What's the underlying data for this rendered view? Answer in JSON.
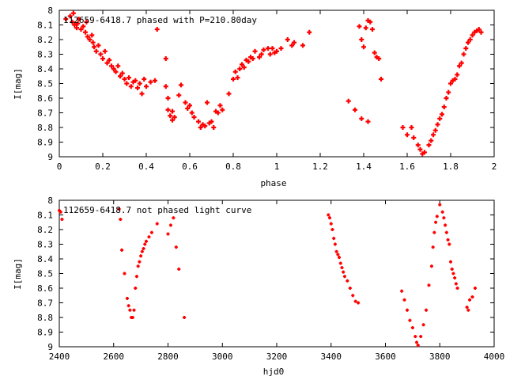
{
  "chart_data": [
    {
      "type": "scatter",
      "title": "112659-6418.7 phased with P=210.80day",
      "xlabel": "phase",
      "ylabel": "I[mag]",
      "xlim": [
        0,
        2
      ],
      "ylim": [
        9,
        8
      ],
      "y_inverted": true,
      "xticks": [
        "0",
        "0.2",
        "0.4",
        "0.6",
        "0.8",
        "1",
        "1.2",
        "1.4",
        "1.6",
        "1.8",
        "2"
      ],
      "yticks": [
        "8",
        "8.1",
        "8.2",
        "8.3",
        "8.4",
        "8.5",
        "8.6",
        "8.7",
        "8.8",
        "8.9",
        "9"
      ],
      "grid": false,
      "series": [
        {
          "color": "#ff0000",
          "marker": "cross",
          "points": [
            [
              0.03,
              8.06
            ],
            [
              0.05,
              8.04
            ],
            [
              0.06,
              8.08
            ],
            [
              0.065,
              8.02
            ],
            [
              0.07,
              8.1
            ],
            [
              0.08,
              8.12
            ],
            [
              0.085,
              8.09
            ],
            [
              0.09,
              8.06
            ],
            [
              0.1,
              8.13
            ],
            [
              0.11,
              8.11
            ],
            [
              0.12,
              8.15
            ],
            [
              0.125,
              8.08
            ],
            [
              0.13,
              8.18
            ],
            [
              0.14,
              8.2
            ],
            [
              0.15,
              8.17
            ],
            [
              0.155,
              8.22
            ],
            [
              0.16,
              8.25
            ],
            [
              0.17,
              8.28
            ],
            [
              0.18,
              8.24
            ],
            [
              0.19,
              8.3
            ],
            [
              0.2,
              8.33
            ],
            [
              0.21,
              8.28
            ],
            [
              0.22,
              8.36
            ],
            [
              0.23,
              8.34
            ],
            [
              0.24,
              8.38
            ],
            [
              0.25,
              8.4
            ],
            [
              0.26,
              8.42
            ],
            [
              0.27,
              8.38
            ],
            [
              0.28,
              8.45
            ],
            [
              0.29,
              8.43
            ],
            [
              0.3,
              8.47
            ],
            [
              0.31,
              8.5
            ],
            [
              0.32,
              8.46
            ],
            [
              0.33,
              8.52
            ],
            [
              0.34,
              8.49
            ],
            [
              0.35,
              8.48
            ],
            [
              0.36,
              8.53
            ],
            [
              0.37,
              8.5
            ],
            [
              0.38,
              8.57
            ],
            [
              0.39,
              8.47
            ],
            [
              0.4,
              8.52
            ],
            [
              0.42,
              8.49
            ],
            [
              0.44,
              8.48
            ],
            [
              0.45,
              8.13
            ],
            [
              0.49,
              8.33
            ],
            [
              0.49,
              8.52
            ],
            [
              0.5,
              8.6
            ],
            [
              0.5,
              8.68
            ],
            [
              0.51,
              8.72
            ],
            [
              0.52,
              8.75
            ],
            [
              0.52,
              8.69
            ],
            [
              0.53,
              8.73
            ],
            [
              0.55,
              8.58
            ],
            [
              0.56,
              8.51
            ],
            [
              0.58,
              8.63
            ],
            [
              0.59,
              8.67
            ],
            [
              0.6,
              8.65
            ],
            [
              0.61,
              8.7
            ],
            [
              0.62,
              8.73
            ],
            [
              0.64,
              8.76
            ],
            [
              0.65,
              8.8
            ],
            [
              0.66,
              8.78
            ],
            [
              0.67,
              8.79
            ],
            [
              0.68,
              8.63
            ],
            [
              0.69,
              8.77
            ],
            [
              0.7,
              8.76
            ],
            [
              0.71,
              8.8
            ],
            [
              0.72,
              8.69
            ],
            [
              0.73,
              8.7
            ],
            [
              0.74,
              8.65
            ],
            [
              0.75,
              8.68
            ],
            [
              0.78,
              8.57
            ],
            [
              0.8,
              8.47
            ],
            [
              0.81,
              8.42
            ],
            [
              0.82,
              8.46
            ],
            [
              0.83,
              8.4
            ],
            [
              0.84,
              8.37
            ],
            [
              0.85,
              8.39
            ],
            [
              0.86,
              8.34
            ],
            [
              0.87,
              8.35
            ],
            [
              0.88,
              8.32
            ],
            [
              0.89,
              8.33
            ],
            [
              0.9,
              8.28
            ],
            [
              0.92,
              8.32
            ],
            [
              0.93,
              8.3
            ],
            [
              0.94,
              8.27
            ],
            [
              0.96,
              8.26
            ],
            [
              0.97,
              8.3
            ],
            [
              0.98,
              8.26
            ],
            [
              0.99,
              8.29
            ],
            [
              1.0,
              8.28
            ],
            [
              1.02,
              8.26
            ],
            [
              1.05,
              8.2
            ],
            [
              1.07,
              8.24
            ],
            [
              1.08,
              8.22
            ],
            [
              1.12,
              8.24
            ],
            [
              1.15,
              8.15
            ],
            [
              1.33,
              8.62
            ],
            [
              1.36,
              8.68
            ],
            [
              1.38,
              8.11
            ],
            [
              1.39,
              8.2
            ],
            [
              1.4,
              8.25
            ],
            [
              1.41,
              8.12
            ],
            [
              1.42,
              8.07
            ],
            [
              1.43,
              8.08
            ],
            [
              1.44,
              8.13
            ],
            [
              1.45,
              8.29
            ],
            [
              1.46,
              8.32
            ],
            [
              1.47,
              8.33
            ],
            [
              1.48,
              8.47
            ],
            [
              1.42,
              8.76
            ],
            [
              1.39,
              8.74
            ],
            [
              1.58,
              8.8
            ],
            [
              1.6,
              8.85
            ],
            [
              1.62,
              8.8
            ],
            [
              1.63,
              8.87
            ],
            [
              1.65,
              8.92
            ],
            [
              1.66,
              8.95
            ],
            [
              1.67,
              8.98
            ],
            [
              1.68,
              8.97
            ],
            [
              1.7,
              8.92
            ],
            [
              1.71,
              8.89
            ],
            [
              1.72,
              8.85
            ],
            [
              1.73,
              8.82
            ],
            [
              1.74,
              8.78
            ],
            [
              1.75,
              8.74
            ],
            [
              1.76,
              8.71
            ],
            [
              1.77,
              8.66
            ],
            [
              1.78,
              8.6
            ],
            [
              1.79,
              8.56
            ],
            [
              1.8,
              8.5
            ],
            [
              1.81,
              8.48
            ],
            [
              1.82,
              8.47
            ],
            [
              1.83,
              8.44
            ],
            [
              1.84,
              8.38
            ],
            [
              1.85,
              8.36
            ],
            [
              1.86,
              8.3
            ],
            [
              1.87,
              8.26
            ],
            [
              1.88,
              8.22
            ],
            [
              1.89,
              8.2
            ],
            [
              1.9,
              8.17
            ],
            [
              1.91,
              8.15
            ],
            [
              1.92,
              8.14
            ],
            [
              1.93,
              8.13
            ],
            [
              1.94,
              8.15
            ]
          ]
        }
      ]
    },
    {
      "type": "scatter",
      "title": "112659-6418.7 not phased light curve",
      "xlabel": "hjd0",
      "ylabel": "I[mag]",
      "xlim": [
        2400,
        4000
      ],
      "ylim": [
        9,
        8
      ],
      "y_inverted": true,
      "xticks": [
        "2400",
        "2600",
        "2800",
        "3000",
        "3200",
        "3400",
        "3600",
        "3800",
        "4000"
      ],
      "yticks": [
        "8",
        "8.1",
        "8.2",
        "8.3",
        "8.4",
        "8.5",
        "8.6",
        "8.7",
        "8.8",
        "8.9",
        "9"
      ],
      "grid": false,
      "series": [
        {
          "color": "#ff0000",
          "marker": "cross",
          "points": [
            [
              2400,
              8.07
            ],
            [
              2405,
              8.08
            ],
            [
              2410,
              8.13
            ],
            [
              2620,
              8.06
            ],
            [
              2625,
              8.13
            ],
            [
              2630,
              8.34
            ],
            [
              2640,
              8.5
            ],
            [
              2650,
              8.67
            ],
            [
              2655,
              8.72
            ],
            [
              2660,
              8.75
            ],
            [
              2665,
              8.8
            ],
            [
              2670,
              8.8
            ],
            [
              2675,
              8.75
            ],
            [
              2680,
              8.6
            ],
            [
              2685,
              8.52
            ],
            [
              2690,
              8.45
            ],
            [
              2695,
              8.42
            ],
            [
              2700,
              8.38
            ],
            [
              2705,
              8.35
            ],
            [
              2710,
              8.33
            ],
            [
              2715,
              8.3
            ],
            [
              2720,
              8.28
            ],
            [
              2730,
              8.25
            ],
            [
              2740,
              8.22
            ],
            [
              2760,
              8.16
            ],
            [
              2800,
              8.23
            ],
            [
              2810,
              8.17
            ],
            [
              2820,
              8.12
            ],
            [
              2830,
              8.32
            ],
            [
              2840,
              8.47
            ],
            [
              2860,
              8.8
            ],
            [
              3390,
              8.1
            ],
            [
              3395,
              8.12
            ],
            [
              3400,
              8.16
            ],
            [
              3405,
              8.2
            ],
            [
              3410,
              8.26
            ],
            [
              3415,
              8.3
            ],
            [
              3420,
              8.35
            ],
            [
              3425,
              8.37
            ],
            [
              3430,
              8.39
            ],
            [
              3435,
              8.43
            ],
            [
              3440,
              8.46
            ],
            [
              3445,
              8.49
            ],
            [
              3450,
              8.52
            ],
            [
              3460,
              8.55
            ],
            [
              3470,
              8.6
            ],
            [
              3480,
              8.65
            ],
            [
              3490,
              8.69
            ],
            [
              3500,
              8.7
            ],
            [
              3660,
              8.62
            ],
            [
              3670,
              8.68
            ],
            [
              3680,
              8.75
            ],
            [
              3690,
              8.82
            ],
            [
              3700,
              8.87
            ],
            [
              3710,
              8.93
            ],
            [
              3715,
              8.97
            ],
            [
              3720,
              8.99
            ],
            [
              3730,
              8.93
            ],
            [
              3740,
              8.85
            ],
            [
              3750,
              8.75
            ],
            [
              3760,
              8.58
            ],
            [
              3770,
              8.45
            ],
            [
              3775,
              8.32
            ],
            [
              3780,
              8.22
            ],
            [
              3785,
              8.15
            ],
            [
              3790,
              8.11
            ],
            [
              3800,
              8.03
            ],
            [
              3810,
              8.08
            ],
            [
              3815,
              8.12
            ],
            [
              3820,
              8.17
            ],
            [
              3825,
              8.22
            ],
            [
              3830,
              8.27
            ],
            [
              3835,
              8.3
            ],
            [
              3840,
              8.42
            ],
            [
              3845,
              8.47
            ],
            [
              3850,
              8.5
            ],
            [
              3855,
              8.53
            ],
            [
              3860,
              8.57
            ],
            [
              3865,
              8.6
            ],
            [
              3900,
              8.73
            ],
            [
              3905,
              8.75
            ],
            [
              3910,
              8.68
            ],
            [
              3920,
              8.66
            ],
            [
              3930,
              8.6
            ]
          ]
        }
      ]
    }
  ]
}
